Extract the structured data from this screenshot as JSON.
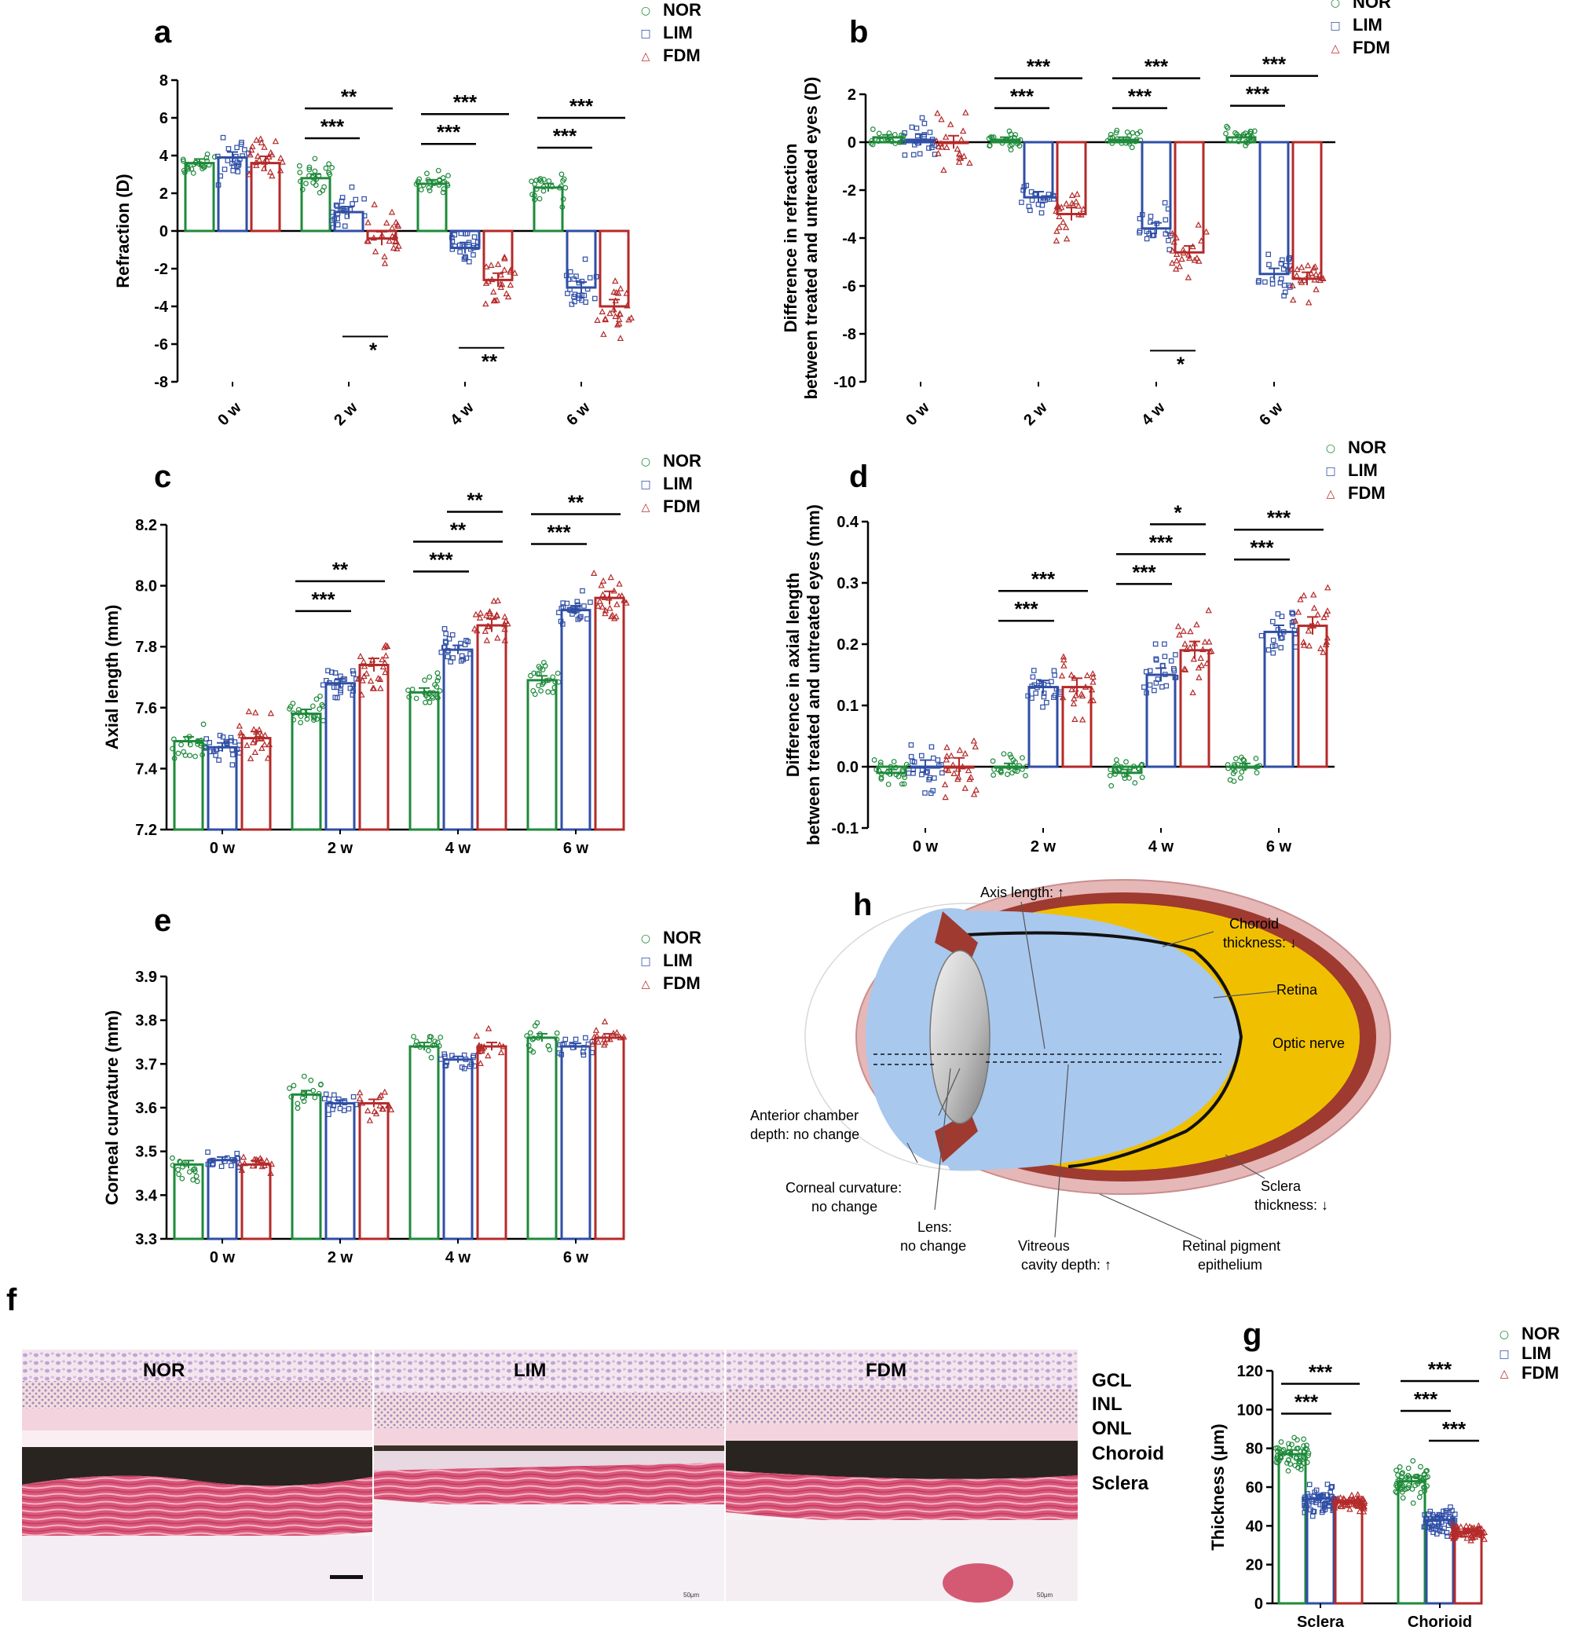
{
  "colors": {
    "NOR": "#1e8a3a",
    "LIM": "#2f4ea6",
    "FDM": "#b52a2a"
  },
  "legend_markers": {
    "NOR": "○",
    "LIM": "□",
    "FDM": "△"
  },
  "panels": {
    "a": {
      "letter": "a",
      "chart_data": {
        "type": "bar",
        "ylabel": "Refraction (D)",
        "ylim": [
          -8,
          8
        ],
        "yticks": [
          -8,
          -6,
          -4,
          -2,
          0,
          2,
          4,
          6,
          8
        ],
        "ytick_labels": [
          "-8",
          "-6",
          "-4",
          "-2",
          "0",
          "2",
          "4",
          "6",
          "8"
        ],
        "categories": [
          "0 w",
          "2 w",
          "4 w",
          "6 w"
        ],
        "series": [
          {
            "name": "NOR",
            "values": [
              3.6,
              2.8,
              2.5,
              2.3
            ],
            "spread": 1.2
          },
          {
            "name": "LIM",
            "values": [
              3.9,
              1.0,
              -0.9,
              -3.0
            ],
            "spread": 1.6
          },
          {
            "name": "FDM",
            "values": [
              3.6,
              -0.4,
              -2.6,
              -4.0
            ],
            "spread": 2.0
          }
        ],
        "legend": [
          "NOR",
          "LIM",
          "FDM"
        ],
        "sig_top": [
          {
            "cat": 1,
            "from": 0,
            "to": 2,
            "label": "**",
            "level": 2
          },
          {
            "cat": 1,
            "from": 0,
            "to": 1,
            "label": "***",
            "level": 1
          },
          {
            "cat": 2,
            "from": 0,
            "to": 2,
            "label": "***",
            "level": 2
          },
          {
            "cat": 2,
            "from": 0,
            "to": 1,
            "label": "***",
            "level": 1
          },
          {
            "cat": 3,
            "from": 0,
            "to": 2,
            "label": "***",
            "level": 2
          },
          {
            "cat": 3,
            "from": 0,
            "to": 1,
            "label": "***",
            "level": 1
          }
        ],
        "sig_bottom": [
          {
            "cat": 1,
            "from": 1,
            "to": 2,
            "label": "*",
            "yval": -5.6
          },
          {
            "cat": 2,
            "from": 1,
            "to": 2,
            "label": "**",
            "yval": -6.2
          }
        ]
      }
    },
    "b": {
      "letter": "b",
      "chart_data": {
        "type": "bar",
        "ylabel": "Difference in refraction",
        "ylabel2": "between treated and untreated eyes (D)",
        "ylim": [
          -10,
          2
        ],
        "yticks": [
          -10,
          -8,
          -6,
          -4,
          -2,
          0,
          2
        ],
        "ytick_labels": [
          "-10",
          "-8",
          "-6",
          "-4",
          "-2",
          "0",
          "2"
        ],
        "categories": [
          "0 w",
          "2 w",
          "4 w",
          "6 w"
        ],
        "series": [
          {
            "name": "NOR",
            "values": [
              0.2,
              0.1,
              0.1,
              0.2
            ],
            "spread": 0.6
          },
          {
            "name": "LIM",
            "values": [
              0.1,
              -2.3,
              -3.6,
              -5.5
            ],
            "spread": 1.3
          },
          {
            "name": "FDM",
            "values": [
              0.0,
              -3.0,
              -4.6,
              -5.7
            ],
            "spread": 1.5
          }
        ],
        "legend": [
          "NOR",
          "LIM",
          "FDM"
        ],
        "sig_top": [
          {
            "cat": 1,
            "from": 0,
            "to": 2,
            "label": "***",
            "level": 2
          },
          {
            "cat": 1,
            "from": 0,
            "to": 1,
            "label": "***",
            "level": 1
          },
          {
            "cat": 2,
            "from": 0,
            "to": 2,
            "label": "***",
            "level": 2
          },
          {
            "cat": 2,
            "from": 0,
            "to": 1,
            "label": "***",
            "level": 1
          },
          {
            "cat": 3,
            "from": 0,
            "to": 2,
            "label": "***",
            "level": 2
          },
          {
            "cat": 3,
            "from": 0,
            "to": 1,
            "label": "***",
            "level": 1
          }
        ],
        "sig_bottom": [
          {
            "cat": 2,
            "from": 1,
            "to": 2,
            "label": "*",
            "yval": -8.7
          }
        ]
      }
    },
    "c": {
      "letter": "c",
      "chart_data": {
        "type": "bar",
        "ylabel": "Axial length (mm)",
        "ylim": [
          7.2,
          8.2
        ],
        "yticks": [
          7.2,
          7.4,
          7.6,
          7.8,
          8.0,
          8.2
        ],
        "ytick_labels": [
          "7.2",
          "7.4",
          "7.6",
          "7.8",
          "8.0",
          "8.2"
        ],
        "categories": [
          "0 w",
          "2 w",
          "4 w",
          "6 w"
        ],
        "series": [
          {
            "name": "NOR",
            "values": [
              7.49,
              7.58,
              7.65,
              7.69
            ],
            "spread": 0.08
          },
          {
            "name": "LIM",
            "values": [
              7.47,
              7.68,
              7.79,
              7.92
            ],
            "spread": 0.08
          },
          {
            "name": "FDM",
            "values": [
              7.5,
              7.74,
              7.87,
              7.96
            ],
            "spread": 0.12
          }
        ],
        "legend": [
          "NOR",
          "LIM",
          "FDM"
        ],
        "sig_top": [
          {
            "cat": 1,
            "from": 0,
            "to": 2,
            "label": "**",
            "level": 2
          },
          {
            "cat": 1,
            "from": 0,
            "to": 1,
            "label": "***",
            "level": 1
          },
          {
            "cat": 2,
            "from": 1,
            "to": 2,
            "label": "**",
            "level": 3
          },
          {
            "cat": 2,
            "from": 0,
            "to": 2,
            "label": "**",
            "level": 2
          },
          {
            "cat": 2,
            "from": 0,
            "to": 1,
            "label": "***",
            "level": 1
          },
          {
            "cat": 3,
            "from": 0,
            "to": 2,
            "label": "**",
            "level": 2
          },
          {
            "cat": 3,
            "from": 0,
            "to": 1,
            "label": "***",
            "level": 1
          }
        ],
        "sig_bottom": []
      }
    },
    "d": {
      "letter": "d",
      "chart_data": {
        "type": "bar",
        "ylabel": "Difference in axial length",
        "ylabel2": "between treated and untreated eyes (mm)",
        "ylim": [
          -0.1,
          0.4
        ],
        "yticks": [
          -0.1,
          0.0,
          0.1,
          0.2,
          0.3,
          0.4
        ],
        "ytick_labels": [
          "-0.1",
          "0.0",
          "0.1",
          "0.2",
          "0.3",
          "0.4"
        ],
        "categories": [
          "0 w",
          "2 w",
          "4 w",
          "6 w"
        ],
        "series": [
          {
            "name": "NOR",
            "values": [
              -0.01,
              0.0,
              -0.01,
              0.0
            ],
            "spread": 0.03
          },
          {
            "name": "LIM",
            "values": [
              0.0,
              0.13,
              0.15,
              0.22
            ],
            "spread": 0.06
          },
          {
            "name": "FDM",
            "values": [
              0.0,
              0.13,
              0.19,
              0.23
            ],
            "spread": 0.08
          }
        ],
        "legend": [
          "NOR",
          "LIM",
          "FDM"
        ],
        "sig_top": [
          {
            "cat": 1,
            "from": 0,
            "to": 2,
            "label": "***",
            "level": 2
          },
          {
            "cat": 1,
            "from": 0,
            "to": 1,
            "label": "***",
            "level": 1
          },
          {
            "cat": 2,
            "from": 1,
            "to": 2,
            "label": "*",
            "level": 3
          },
          {
            "cat": 2,
            "from": 0,
            "to": 2,
            "label": "***",
            "level": 2
          },
          {
            "cat": 2,
            "from": 0,
            "to": 1,
            "label": "***",
            "level": 1
          },
          {
            "cat": 3,
            "from": 0,
            "to": 2,
            "label": "***",
            "level": 2
          },
          {
            "cat": 3,
            "from": 0,
            "to": 1,
            "label": "***",
            "level": 1
          }
        ],
        "sig_bottom": []
      }
    },
    "e": {
      "letter": "e",
      "chart_data": {
        "type": "bar",
        "ylabel": "Corneal curvature (mm)",
        "ylim": [
          3.3,
          3.9
        ],
        "yticks": [
          3.3,
          3.4,
          3.5,
          3.6,
          3.7,
          3.8,
          3.9
        ],
        "ytick_labels": [
          "3.3",
          "3.4",
          "3.5",
          "3.6",
          "3.7",
          "3.8",
          "3.9"
        ],
        "categories": [
          "0 w",
          "2 w",
          "4 w",
          "6 w"
        ],
        "series": [
          {
            "name": "NOR",
            "values": [
              3.47,
              3.63,
              3.74,
              3.76
            ],
            "spread": 0.05
          },
          {
            "name": "LIM",
            "values": [
              3.48,
              3.61,
              3.71,
              3.74
            ],
            "spread": 0.04
          },
          {
            "name": "FDM",
            "values": [
              3.47,
              3.61,
              3.74,
              3.76
            ],
            "spread": 0.05
          }
        ],
        "legend": [
          "NOR",
          "LIM",
          "FDM"
        ],
        "sig_top": [],
        "sig_bottom": []
      }
    },
    "g": {
      "letter": "g",
      "chart_data": {
        "type": "bar",
        "ylabel": "Thickness (μm)",
        "ylim": [
          0,
          120
        ],
        "yticks": [
          0,
          20,
          40,
          60,
          80,
          100,
          120
        ],
        "ytick_labels": [
          "0",
          "20",
          "40",
          "60",
          "80",
          "100",
          "120"
        ],
        "categories": [
          "Sclera",
          "Chorioid"
        ],
        "series": [
          {
            "name": "NOR",
            "values": [
              77,
              63
            ],
            "spread": 12
          },
          {
            "name": "LIM",
            "values": [
              54,
              43
            ],
            "spread": 11
          },
          {
            "name": "FDM",
            "values": [
              52,
              37
            ],
            "spread": 6
          }
        ],
        "legend": [
          "NOR",
          "LIM",
          "FDM"
        ],
        "sig_top": [
          {
            "cat": 0,
            "from": 0,
            "to": 2,
            "label": "***",
            "level": 2
          },
          {
            "cat": 0,
            "from": 0,
            "to": 1,
            "label": "***",
            "level": 1
          },
          {
            "cat": 1,
            "from": 0,
            "to": 2,
            "label": "***",
            "level": 3
          },
          {
            "cat": 1,
            "from": 0,
            "to": 1,
            "label": "***",
            "level": 2
          },
          {
            "cat": 1,
            "from": 1,
            "to": 2,
            "label": "***",
            "level": 1
          }
        ],
        "sig_bottom": []
      }
    }
  },
  "diagram_h": {
    "letter": "h",
    "labels": {
      "axis_length": "Axis length: ↑",
      "choroid_1": "Choroid",
      "choroid_2": "thickness: ↓",
      "retina": "Retina",
      "optic_nerve": "Optic nerve",
      "acd_1": "Anterior chamber",
      "acd_2": "depth: no change",
      "cornea_1": "Corneal curvature:",
      "cornea_2": "no change",
      "lens_1": "Lens:",
      "lens_2": "no change",
      "vitreous_1": "Vitreous",
      "vitreous_2": "cavity depth: ↑",
      "rpe_1": "Retinal pigment",
      "rpe_2": "epithelium",
      "sclera_1": "Sclera",
      "sclera_2": "thickness: ↓"
    }
  },
  "histology_f": {
    "letter": "f",
    "panels": [
      "NOR",
      "LIM",
      "FDM"
    ],
    "layers": [
      "GCL",
      "INL",
      "ONL",
      "Choroid",
      "Sclera"
    ],
    "scalebar": "50μm"
  }
}
